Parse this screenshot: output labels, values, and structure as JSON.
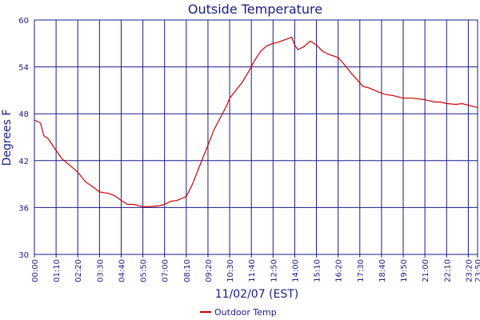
{
  "chart_data": {
    "type": "line",
    "title": "Outside Temperature",
    "xlabel": "11/02/07 (EST)",
    "ylabel": "Degrees F",
    "xlim": [
      "00:00",
      "23:50"
    ],
    "ylim": [
      30,
      60
    ],
    "yticks": [
      30,
      36,
      42,
      48,
      54,
      60
    ],
    "xticks": [
      "00:00",
      "01:10",
      "02:20",
      "03:30",
      "04:40",
      "05:50",
      "07:00",
      "08:10",
      "09:20",
      "10:30",
      "11:40",
      "12:50",
      "14:00",
      "15:10",
      "16:20",
      "17:30",
      "18:40",
      "19:50",
      "21:00",
      "22:10",
      "23:20",
      "23:50"
    ],
    "grid": true,
    "legend": "bottom-center",
    "series": [
      {
        "name": "Outdoor Temp",
        "color": "#cc0000",
        "x": [
          "00:00",
          "00:20",
          "00:30",
          "00:45",
          "01:10",
          "01:30",
          "02:00",
          "02:20",
          "02:45",
          "03:10",
          "03:30",
          "04:00",
          "04:20",
          "04:40",
          "05:00",
          "05:20",
          "05:50",
          "06:10",
          "06:40",
          "07:00",
          "07:20",
          "07:40",
          "08:10",
          "08:30",
          "08:50",
          "09:20",
          "09:40",
          "10:00",
          "10:20",
          "10:30",
          "10:50",
          "11:10",
          "11:30",
          "11:50",
          "12:10",
          "12:30",
          "12:50",
          "13:10",
          "13:30",
          "13:50",
          "14:00",
          "14:10",
          "14:30",
          "14:50",
          "15:10",
          "15:30",
          "15:50",
          "16:20",
          "16:40",
          "17:00",
          "17:20",
          "17:40",
          "18:00",
          "18:30",
          "18:50",
          "19:20",
          "19:50",
          "20:20",
          "21:00",
          "21:30",
          "21:50",
          "22:10",
          "22:40",
          "23:00",
          "23:30",
          "23:50"
        ],
        "values": [
          47.2,
          46.8,
          45.2,
          44.8,
          43.3,
          42.2,
          41.2,
          40.5,
          39.3,
          38.6,
          38.0,
          37.8,
          37.5,
          36.9,
          36.4,
          36.4,
          36.1,
          36.1,
          36.2,
          36.4,
          36.8,
          36.9,
          37.4,
          39.0,
          41.0,
          44.0,
          46.0,
          47.5,
          49.0,
          50.0,
          51.0,
          52.0,
          53.3,
          54.8,
          56.0,
          56.7,
          57.0,
          57.2,
          57.5,
          57.8,
          56.8,
          56.2,
          56.6,
          57.3,
          56.8,
          56.0,
          55.6,
          55.2,
          54.3,
          53.3,
          52.4,
          51.5,
          51.3,
          50.8,
          50.5,
          50.3,
          50.0,
          50.0,
          49.8,
          49.5,
          49.5,
          49.3,
          49.2,
          49.3,
          49.0,
          48.8
        ]
      }
    ]
  }
}
